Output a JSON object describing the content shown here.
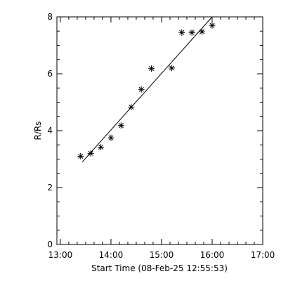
{
  "chart_data": {
    "type": "scatter",
    "title": "",
    "xlabel": "Start Time (08-Feb-25 12:55:53)",
    "ylabel": "R/Rs",
    "x_tick_labels": [
      "13:00",
      "14:00",
      "15:00",
      "16:00",
      "17:00"
    ],
    "y_tick_labels": [
      "0",
      "2",
      "4",
      "6",
      "8"
    ],
    "xlim": [
      "12:55:53",
      "17:00"
    ],
    "ylim": [
      0,
      8
    ],
    "grid": false,
    "legend": "none",
    "marker": "asterisk",
    "color": "#000000",
    "series": [
      {
        "type": "scatter",
        "x": [
          "13:24",
          "13:36",
          "13:48",
          "14:00",
          "14:12",
          "14:24",
          "14:36",
          "14:48",
          "15:12",
          "15:24",
          "15:36",
          "15:48",
          "16:00"
        ],
        "y": [
          3.1,
          3.2,
          3.42,
          3.75,
          4.18,
          4.83,
          5.45,
          6.18,
          6.2,
          7.45,
          7.45,
          7.48,
          7.7
        ]
      },
      {
        "type": "line",
        "x": [
          "13:26",
          "16:00"
        ],
        "y": [
          2.9,
          8.0
        ]
      }
    ]
  }
}
